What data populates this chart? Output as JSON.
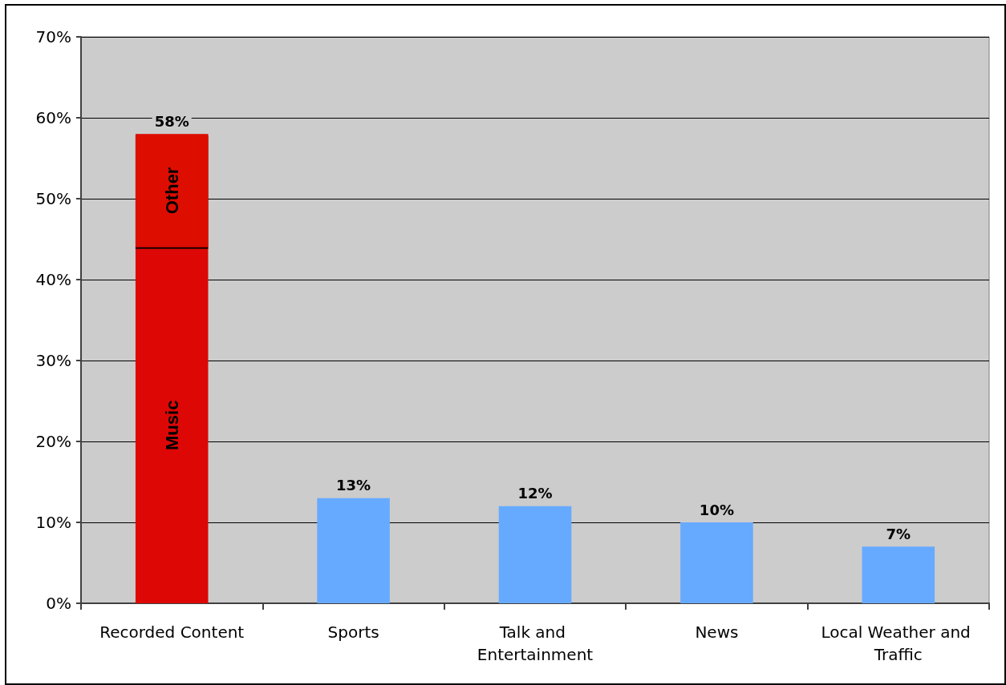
{
  "chart_data": {
    "type": "bar",
    "stacked": true,
    "categories": [
      "Recorded Content",
      "Sports",
      "Talk and Entertainment",
      "News",
      "Local Weather and Traffic"
    ],
    "series": [
      {
        "name": "Music",
        "color": "#dd0806",
        "values": [
          44,
          null,
          null,
          null,
          null
        ]
      },
      {
        "name": "Other",
        "color": "#dd0806",
        "values": [
          14,
          null,
          null,
          null,
          null
        ]
      },
      {
        "color": "#66aaff",
        "values": [
          null,
          13,
          12,
          10,
          7
        ]
      }
    ],
    "totals": [
      "58%",
      "13%",
      "12%",
      "10%",
      "7%"
    ],
    "ylim": [
      0,
      70
    ],
    "yticks": [
      {
        "value": 0,
        "label": "0%"
      },
      {
        "value": 10,
        "label": "10%"
      },
      {
        "value": 20,
        "label": "20%"
      },
      {
        "value": 30,
        "label": "30%"
      },
      {
        "value": 40,
        "label": "40%"
      },
      {
        "value": 50,
        "label": "50%"
      },
      {
        "value": 60,
        "label": "60%"
      },
      {
        "value": 70,
        "label": "70%"
      }
    ],
    "grid": "y",
    "legend": false
  }
}
